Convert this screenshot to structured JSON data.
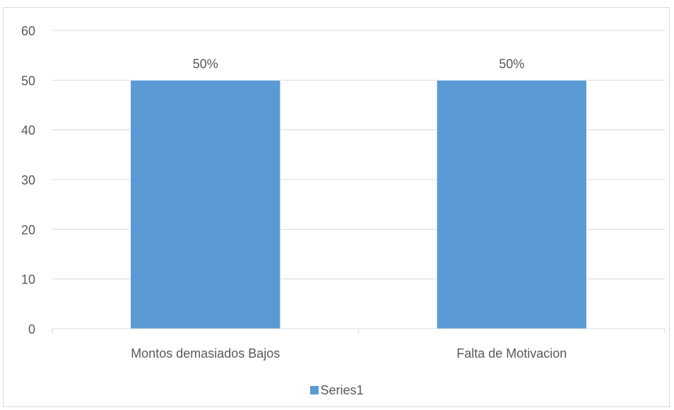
{
  "chart_data": {
    "type": "bar",
    "categories": [
      "Montos demasiados Bajos",
      "Falta de Motivacion"
    ],
    "series": [
      {
        "name": "Series1",
        "values": [
          50,
          50
        ],
        "data_labels": [
          "50%",
          "50%"
        ],
        "color": "#5b9bd5"
      }
    ],
    "yticks": [
      "0",
      "10",
      "20",
      "30",
      "40",
      "50",
      "60"
    ],
    "ylim": [
      0,
      60
    ],
    "grid": true,
    "legend": "bottom-center"
  }
}
